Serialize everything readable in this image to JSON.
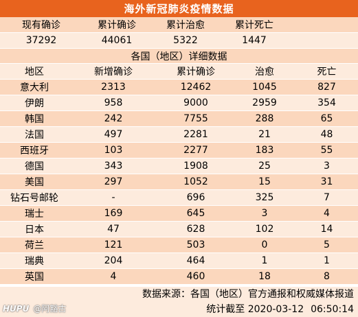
{
  "title": "海外新冠肺炎疫情数据",
  "summary": {
    "headers": [
      "现有确诊",
      "累计确诊",
      "累计治愈",
      "累计死亡"
    ],
    "values": [
      "37292",
      "44061",
      "5322",
      "1447"
    ]
  },
  "details": {
    "section_title": "各国（地区）详细数据",
    "headers": [
      "地区",
      "新增确诊",
      "累计确诊",
      "治愈",
      "死亡"
    ],
    "rows": [
      [
        "意大利",
        "2313",
        "12462",
        "1045",
        "827"
      ],
      [
        "伊朗",
        "958",
        "9000",
        "2959",
        "354"
      ],
      [
        "韩国",
        "242",
        "7755",
        "288",
        "65"
      ],
      [
        "法国",
        "497",
        "2281",
        "21",
        "48"
      ],
      [
        "西班牙",
        "103",
        "2277",
        "183",
        "55"
      ],
      [
        "德国",
        "343",
        "1908",
        "25",
        "3"
      ],
      [
        "美国",
        "297",
        "1052",
        "15",
        "31"
      ],
      [
        "钻石号邮轮",
        "-",
        "696",
        "325",
        "7"
      ],
      [
        "瑞士",
        "169",
        "645",
        "3",
        "4"
      ],
      [
        "日本",
        "47",
        "628",
        "102",
        "14"
      ],
      [
        "荷兰",
        "121",
        "503",
        "0",
        "5"
      ],
      [
        "瑞典",
        "204",
        "464",
        "1",
        "1"
      ],
      [
        "英国",
        "4",
        "460",
        "18",
        "8"
      ]
    ]
  },
  "footer": {
    "source": "数据来源：各国（地区）官方通报和权威媒体报道",
    "stat_label": "统计截至 2020-03-12",
    "stat_time": "06:50:14"
  },
  "watermark": {
    "brand": "HUPU",
    "handle": "@阿豁古"
  }
}
